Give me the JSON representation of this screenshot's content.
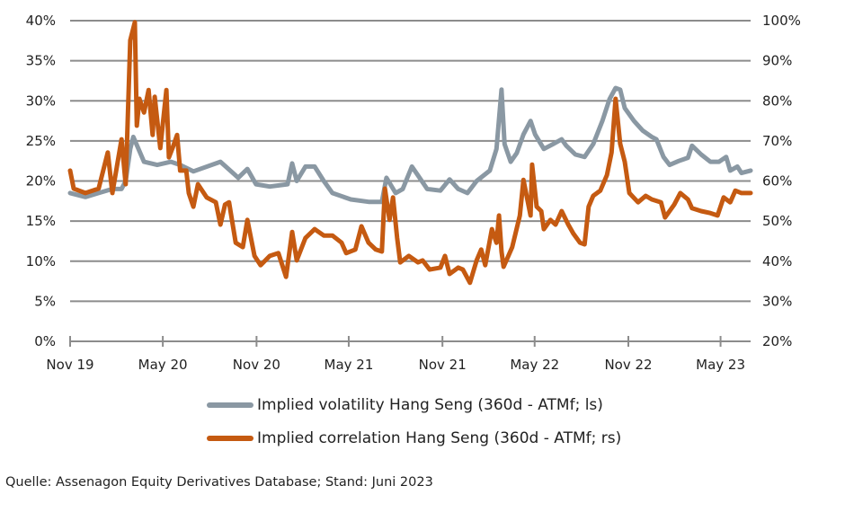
{
  "chart_data": {
    "type": "line",
    "title": "",
    "grid": true,
    "legend_position": "bottom",
    "x_tick_labels": [
      {
        "date": "2019-11-01",
        "label": "Nov 19"
      },
      {
        "date": "2020-05-01",
        "label": "May 20"
      },
      {
        "date": "2020-11-01",
        "label": "Nov 20"
      },
      {
        "date": "2021-05-01",
        "label": "May 21"
      },
      {
        "date": "2021-11-01",
        "label": "Nov 21"
      },
      {
        "date": "2022-05-01",
        "label": "May 22"
      },
      {
        "date": "2022-11-01",
        "label": "Nov 22"
      },
      {
        "date": "2023-05-01",
        "label": "May 23"
      }
    ],
    "x_range": [
      "2019-11-01",
      "2023-06-29"
    ],
    "y_left": {
      "range": [
        0,
        40
      ],
      "ticks": [
        0,
        5,
        10,
        15,
        20,
        25,
        30,
        35,
        40
      ],
      "unit": "%"
    },
    "y_right": {
      "range": [
        20,
        100
      ],
      "ticks": [
        20,
        30,
        40,
        50,
        60,
        70,
        80,
        90,
        100
      ],
      "unit": "%"
    },
    "series": [
      {
        "name": "Implied volatility Hang Seng (360d - ATMf; ls)",
        "axis": "left",
        "color": "#8a98a3",
        "points": [
          [
            "2019-11-01",
            18.5
          ],
          [
            "2019-12-01",
            18
          ],
          [
            "2019-12-27",
            18.5
          ],
          [
            "2020-01-23",
            19
          ],
          [
            "2020-02-10",
            19
          ],
          [
            "2020-02-18",
            20
          ],
          [
            "2020-02-27",
            24
          ],
          [
            "2020-03-04",
            25.5
          ],
          [
            "2020-03-25",
            22.4
          ],
          [
            "2020-04-20",
            22
          ],
          [
            "2020-05-17",
            22.4
          ],
          [
            "2020-06-04",
            22
          ],
          [
            "2020-06-30",
            21.2
          ],
          [
            "2020-08-22",
            22.4
          ],
          [
            "2020-09-26",
            20.4
          ],
          [
            "2020-10-14",
            21.5
          ],
          [
            "2020-10-31",
            19.6
          ],
          [
            "2020-11-27",
            19.3
          ],
          [
            "2021-01-01",
            19.6
          ],
          [
            "2021-01-10",
            22.2
          ],
          [
            "2021-01-19",
            20
          ],
          [
            "2021-02-05",
            21.8
          ],
          [
            "2021-02-23",
            21.8
          ],
          [
            "2021-03-13",
            20
          ],
          [
            "2021-03-30",
            18.5
          ],
          [
            "2021-05-05",
            17.7
          ],
          [
            "2021-06-09",
            17.4
          ],
          [
            "2021-07-05",
            17.4
          ],
          [
            "2021-07-14",
            20.4
          ],
          [
            "2021-08-01",
            18.5
          ],
          [
            "2021-08-15",
            19
          ],
          [
            "2021-09-02",
            21.8
          ],
          [
            "2021-09-14",
            20.7
          ],
          [
            "2021-10-02",
            19
          ],
          [
            "2021-10-28",
            18.8
          ],
          [
            "2021-11-15",
            20.2
          ],
          [
            "2021-12-02",
            19
          ],
          [
            "2021-12-20",
            18.5
          ],
          [
            "2022-01-07",
            20
          ],
          [
            "2022-02-02",
            21.3
          ],
          [
            "2022-02-15",
            24
          ],
          [
            "2022-02-25",
            31.4
          ],
          [
            "2022-03-03",
            24.6
          ],
          [
            "2022-03-15",
            22.4
          ],
          [
            "2022-03-27",
            23.5
          ],
          [
            "2022-04-09",
            25.8
          ],
          [
            "2022-04-23",
            27.5
          ],
          [
            "2022-05-02",
            25.8
          ],
          [
            "2022-05-19",
            24
          ],
          [
            "2022-06-06",
            24.6
          ],
          [
            "2022-06-23",
            25.2
          ],
          [
            "2022-07-02",
            24.4
          ],
          [
            "2022-07-20",
            23.3
          ],
          [
            "2022-08-07",
            23
          ],
          [
            "2022-08-24",
            24.6
          ],
          [
            "2022-09-11",
            27.5
          ],
          [
            "2022-09-25",
            30.2
          ],
          [
            "2022-10-07",
            31.6
          ],
          [
            "2022-10-16",
            31.4
          ],
          [
            "2022-10-25",
            29.1
          ],
          [
            "2022-11-12",
            27.5
          ],
          [
            "2022-11-29",
            26.3
          ],
          [
            "2022-12-17",
            25.5
          ],
          [
            "2022-12-26",
            25.2
          ],
          [
            "2023-01-09",
            23
          ],
          [
            "2023-01-21",
            22
          ],
          [
            "2023-02-08",
            22.5
          ],
          [
            "2023-02-26",
            22.9
          ],
          [
            "2023-03-06",
            24.4
          ],
          [
            "2023-03-24",
            23.3
          ],
          [
            "2023-04-11",
            22.4
          ],
          [
            "2023-04-28",
            22.4
          ],
          [
            "2023-05-12",
            23
          ],
          [
            "2023-05-20",
            21.3
          ],
          [
            "2023-06-03",
            21.8
          ],
          [
            "2023-06-11",
            21
          ],
          [
            "2023-06-29",
            21.3
          ]
        ]
      },
      {
        "name": "Implied correlation Hang Seng (360d - ATMf; rs)",
        "axis": "right",
        "color": "#c55a11",
        "points": [
          [
            "2019-11-01",
            62.6
          ],
          [
            "2019-11-08",
            58.1
          ],
          [
            "2019-12-01",
            57
          ],
          [
            "2019-12-27",
            58.1
          ],
          [
            "2020-01-14",
            67.1
          ],
          [
            "2020-01-23",
            57
          ],
          [
            "2020-02-10",
            70.4
          ],
          [
            "2020-02-18",
            59.2
          ],
          [
            "2020-02-27",
            95.1
          ],
          [
            "2020-03-07",
            99.6
          ],
          [
            "2020-03-11",
            73.8
          ],
          [
            "2020-03-16",
            80.5
          ],
          [
            "2020-03-25",
            77.1
          ],
          [
            "2020-04-03",
            82.7
          ],
          [
            "2020-04-11",
            71.5
          ],
          [
            "2020-04-15",
            81
          ],
          [
            "2020-04-26",
            68.2
          ],
          [
            "2020-05-08",
            82.7
          ],
          [
            "2020-05-13",
            65.9
          ],
          [
            "2020-05-20",
            68.2
          ],
          [
            "2020-05-29",
            71.5
          ],
          [
            "2020-06-04",
            62.6
          ],
          [
            "2020-06-16",
            62.6
          ],
          [
            "2020-06-21",
            57
          ],
          [
            "2020-06-30",
            53.6
          ],
          [
            "2020-07-09",
            59.2
          ],
          [
            "2020-07-26",
            55.9
          ],
          [
            "2020-08-13",
            54.7
          ],
          [
            "2020-08-22",
            49.1
          ],
          [
            "2020-08-31",
            54.1
          ],
          [
            "2020-09-08",
            54.7
          ],
          [
            "2020-09-21",
            44.6
          ],
          [
            "2020-10-05",
            43.5
          ],
          [
            "2020-10-14",
            50.3
          ],
          [
            "2020-10-28",
            41.3
          ],
          [
            "2020-11-09",
            39
          ],
          [
            "2020-11-27",
            41.3
          ],
          [
            "2020-12-14",
            42
          ],
          [
            "2020-12-29",
            36.1
          ],
          [
            "2021-01-10",
            47.3
          ],
          [
            "2021-01-19",
            40.2
          ],
          [
            "2021-02-05",
            45.8
          ],
          [
            "2021-02-23",
            48
          ],
          [
            "2021-03-13",
            46.4
          ],
          [
            "2021-03-30",
            46.4
          ],
          [
            "2021-04-17",
            44.6
          ],
          [
            "2021-04-26",
            42
          ],
          [
            "2021-05-14",
            42.9
          ],
          [
            "2021-05-26",
            48.7
          ],
          [
            "2021-06-09",
            44.6
          ],
          [
            "2021-06-23",
            42.9
          ],
          [
            "2021-07-05",
            42.4
          ],
          [
            "2021-07-11",
            58.1
          ],
          [
            "2021-07-20",
            50.3
          ],
          [
            "2021-07-27",
            55.9
          ],
          [
            "2021-08-04",
            45.8
          ],
          [
            "2021-08-10",
            39.7
          ],
          [
            "2021-08-27",
            41.3
          ],
          [
            "2021-09-14",
            39.7
          ],
          [
            "2021-09-23",
            40.2
          ],
          [
            "2021-10-07",
            37.9
          ],
          [
            "2021-10-28",
            38.4
          ],
          [
            "2021-11-06",
            41.3
          ],
          [
            "2021-11-15",
            36.8
          ],
          [
            "2021-12-02",
            38.4
          ],
          [
            "2021-12-11",
            37.9
          ],
          [
            "2021-12-25",
            34.6
          ],
          [
            "2022-01-07",
            40.2
          ],
          [
            "2022-01-16",
            42.9
          ],
          [
            "2022-01-24",
            39
          ],
          [
            "2022-02-06",
            48
          ],
          [
            "2022-02-15",
            44.6
          ],
          [
            "2022-02-20",
            51.4
          ],
          [
            "2022-02-25",
            42.4
          ],
          [
            "2022-03-01",
            38.6
          ],
          [
            "2022-03-18",
            43.5
          ],
          [
            "2022-04-02",
            51.4
          ],
          [
            "2022-04-09",
            60.3
          ],
          [
            "2022-04-23",
            51.4
          ],
          [
            "2022-04-26",
            64.1
          ],
          [
            "2022-05-05",
            53.6
          ],
          [
            "2022-05-14",
            52.5
          ],
          [
            "2022-05-19",
            48
          ],
          [
            "2022-06-01",
            50.3
          ],
          [
            "2022-06-11",
            49.1
          ],
          [
            "2022-06-23",
            52.5
          ],
          [
            "2022-07-06",
            49.1
          ],
          [
            "2022-07-16",
            46.9
          ],
          [
            "2022-07-29",
            44.6
          ],
          [
            "2022-08-07",
            44.2
          ],
          [
            "2022-08-15",
            53.6
          ],
          [
            "2022-08-24",
            56.3
          ],
          [
            "2022-09-07",
            57.6
          ],
          [
            "2022-09-20",
            61.5
          ],
          [
            "2022-09-29",
            67.1
          ],
          [
            "2022-10-07",
            80.5
          ],
          [
            "2022-10-16",
            69.3
          ],
          [
            "2022-10-25",
            64.8
          ],
          [
            "2022-11-03",
            57
          ],
          [
            "2022-11-20",
            54.7
          ],
          [
            "2022-12-05",
            56.3
          ],
          [
            "2022-12-17",
            55.4
          ],
          [
            "2023-01-04",
            54.7
          ],
          [
            "2023-01-12",
            50.9
          ],
          [
            "2023-01-30",
            54.1
          ],
          [
            "2023-02-11",
            57
          ],
          [
            "2023-02-26",
            55.4
          ],
          [
            "2023-03-06",
            53.2
          ],
          [
            "2023-03-24",
            52.5
          ],
          [
            "2023-04-11",
            52
          ],
          [
            "2023-04-25",
            51.4
          ],
          [
            "2023-05-07",
            55.9
          ],
          [
            "2023-05-20",
            54.7
          ],
          [
            "2023-05-30",
            57.6
          ],
          [
            "2023-06-11",
            57
          ],
          [
            "2023-06-29",
            57
          ]
        ]
      }
    ]
  },
  "legend": {
    "vol_label": "Implied volatility Hang Seng (360d - ATMf; ls)",
    "corr_label": "Implied correlation Hang Seng (360d - ATMf; rs)"
  },
  "source": "Quelle: Assenagon Equity Derivatives Database; Stand: Juni 2023"
}
